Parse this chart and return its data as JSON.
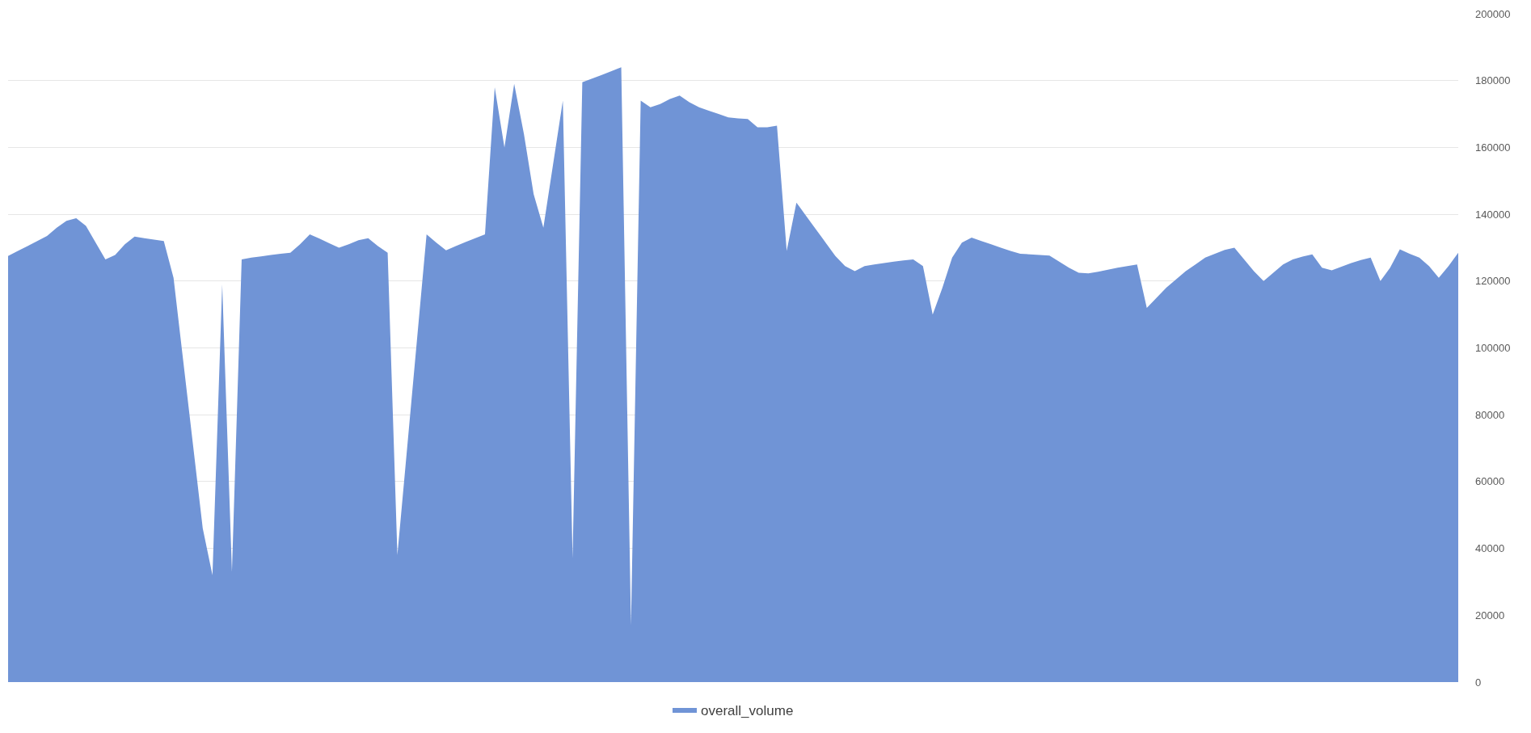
{
  "chart_data": {
    "type": "area",
    "categories": [
      null,
      null,
      null,
      null,
      null,
      null,
      null,
      null,
      null,
      null,
      null,
      null,
      null,
      null,
      null,
      null,
      null,
      null,
      null,
      null,
      null,
      null,
      null,
      null,
      null,
      null,
      null,
      null,
      null,
      null,
      null,
      null,
      null,
      null,
      null,
      null,
      null,
      null,
      null,
      null,
      null,
      null,
      null,
      null,
      null,
      null,
      null,
      null,
      null,
      null,
      null,
      null,
      null,
      null,
      null,
      null,
      null,
      null,
      null,
      null,
      null,
      null,
      null,
      null,
      null,
      null,
      null,
      null,
      null,
      null,
      null,
      null,
      null,
      null,
      null,
      null,
      null,
      null,
      null,
      null,
      null,
      null,
      null,
      null,
      null,
      null,
      null,
      null,
      null,
      null,
      null,
      null,
      null,
      null,
      null,
      null,
      null,
      null,
      null,
      null,
      null,
      null,
      null,
      null,
      null,
      null,
      null,
      null,
      null,
      null,
      null,
      null,
      null,
      null,
      null,
      null,
      null,
      null,
      null,
      null,
      null,
      null,
      null,
      null,
      null,
      null,
      null,
      null,
      null,
      null,
      null,
      null,
      null,
      null,
      null,
      null,
      null,
      null,
      null,
      null,
      null,
      null,
      null,
      null,
      null,
      null,
      null,
      null,
      null,
      null
    ],
    "series": [
      {
        "name": "overall_volume",
        "color": "#7094d6",
        "values": [
          127500,
          129000,
          130500,
          132000,
          133500,
          136000,
          138000,
          138800,
          136500,
          131500,
          126500,
          127800,
          131000,
          133300,
          132800,
          132400,
          132000,
          121000,
          96000,
          71000,
          46000,
          32000,
          119000,
          33000,
          126500,
          127000,
          127400,
          127800,
          128200,
          128500,
          131000,
          134000,
          132700,
          131300,
          130000,
          131000,
          132200,
          132800,
          130500,
          128500,
          38000,
          70000,
          102000,
          134000,
          131500,
          129200,
          130500,
          131700,
          132800,
          134000,
          178000,
          160000,
          179000,
          164000,
          146000,
          136000,
          155000,
          174000,
          37000,
          179500,
          180600,
          181700,
          182800,
          184000,
          17000,
          174000,
          172000,
          173000,
          174500,
          175500,
          173500,
          172000,
          171000,
          170000,
          169000,
          168700,
          168500,
          166000,
          166000,
          166500,
          129000,
          143500,
          139500,
          135500,
          131500,
          127500,
          124500,
          123000,
          124500,
          125000,
          125400,
          125800,
          126200,
          126500,
          124500,
          110000,
          118000,
          127000,
          131500,
          133000,
          132000,
          131000,
          130000,
          129000,
          128200,
          128000,
          127800,
          127600,
          125800,
          124000,
          122500,
          122300,
          122800,
          123400,
          124000,
          124500,
          125000,
          112000,
          115000,
          118000,
          120500,
          123000,
          125000,
          127000,
          128200,
          129300,
          130000,
          126500,
          123000,
          120000,
          122500,
          125000,
          126500,
          127300,
          128000,
          124000,
          123200,
          124300,
          125400,
          126300,
          127000,
          120000,
          124000,
          129500,
          128200,
          127000,
          124500,
          121000,
          124500,
          128500
        ]
      }
    ],
    "ylim": [
      0,
      200000
    ],
    "yticks": [
      0,
      20000,
      40000,
      60000,
      80000,
      100000,
      120000,
      140000,
      160000,
      180000,
      200000
    ],
    "grid": "y",
    "legend": "bottom"
  }
}
